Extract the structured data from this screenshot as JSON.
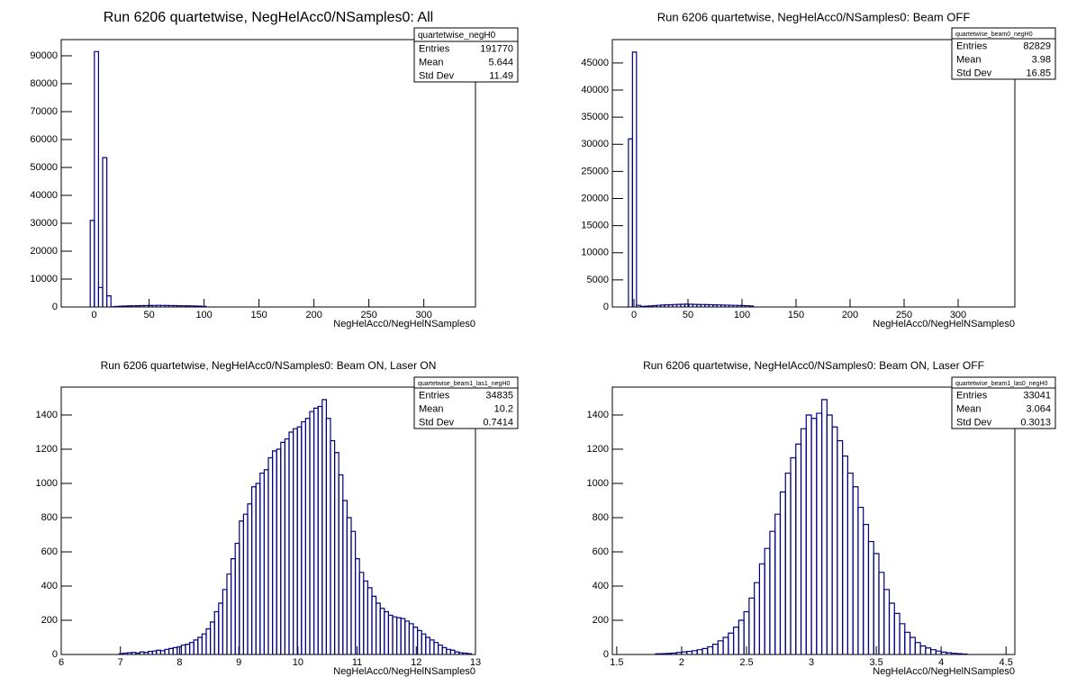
{
  "chart_data": [
    {
      "type": "histogram",
      "title": "Run 6206 quartetwise, NegHelAcc0/NSamples0: All",
      "x_label": "NegHelAcc0/NegHelNSamples0",
      "color": "#000080",
      "bins": [
        -3.61,
        0.16,
        3.93,
        7.7,
        11.47,
        15.24,
        19.01,
        22.78,
        26.55,
        30.32,
        34.09,
        37.86,
        41.63,
        45.4,
        49.17,
        52.94,
        56.71,
        60.48,
        64.25,
        68.02,
        71.79,
        75.56,
        79.33,
        83.1,
        86.87,
        90.64,
        94.41,
        98.18,
        101.95
      ],
      "values": [
        31000,
        91500,
        7000,
        53500,
        4000,
        100,
        200,
        300,
        350,
        400,
        420,
        450,
        480,
        500,
        520,
        550,
        580,
        550,
        520,
        500,
        480,
        450,
        420,
        400,
        380,
        350,
        300,
        200
      ],
      "xlim": [
        -30,
        347
      ],
      "xticks": [
        0,
        50,
        100,
        150,
        200,
        250,
        300
      ],
      "ylim": [
        0,
        95800
      ],
      "yticks": [
        0,
        10000,
        20000,
        30000,
        40000,
        50000,
        60000,
        70000,
        80000,
        90000
      ],
      "stats": {
        "title": "quartetwise_negH0",
        "rows": [
          {
            "label": "Entries",
            "value": 191770
          },
          {
            "label": "Mean",
            "value": 5.644
          },
          {
            "label": "Std Dev",
            "value": 11.49
          }
        ]
      }
    },
    {
      "type": "histogram",
      "title": "Run 6206 quartetwise, NegHelAcc0/NSamples0: Beam OFF",
      "x_label": "NegHelAcc0/NegHelNSamples0",
      "color": "#000080",
      "bins": [
        -5.1,
        -1.375,
        2.35,
        6.075,
        9.8,
        13.525,
        17.25,
        20.975,
        24.7,
        28.425,
        32.15,
        35.875,
        39.6,
        43.325,
        47.05,
        50.775,
        54.5,
        58.225,
        61.95,
        65.675,
        69.4,
        73.125,
        76.85,
        80.575,
        84.3,
        88.025,
        91.75,
        95.475,
        99.2,
        102.925,
        106.65,
        110.375
      ],
      "values": [
        31000,
        47000,
        300,
        100,
        150,
        200,
        250,
        300,
        350,
        400,
        420,
        450,
        480,
        500,
        520,
        500,
        480,
        460,
        450,
        430,
        420,
        400,
        380,
        360,
        340,
        320,
        300,
        280,
        260,
        240,
        200
      ],
      "xlim": [
        -20,
        352.5
      ],
      "xticks": [
        0,
        50,
        100,
        150,
        200,
        250,
        300
      ],
      "ylim": [
        0,
        49300
      ],
      "yticks": [
        0,
        5000,
        10000,
        15000,
        20000,
        25000,
        30000,
        35000,
        40000,
        45000
      ],
      "stats": {
        "title": "quartetwise_beam0_negH0",
        "rows": [
          {
            "label": "Entries",
            "value": 82829
          },
          {
            "label": "Mean",
            "value": 3.98
          },
          {
            "label": "Std Dev",
            "value": 16.85
          }
        ]
      }
    },
    {
      "type": "histogram",
      "title": "Run 6206 quartetwise, NegHelAcc0/NSamples0: Beam ON, Laser ON",
      "x_label": "NegHelAcc0/NegHelNSamples0",
      "color": "#000080",
      "bins": [
        6.98,
        7.05,
        7.12,
        7.19,
        7.26,
        7.33,
        7.4,
        7.47,
        7.54,
        7.61,
        7.68,
        7.75,
        7.82,
        7.89,
        7.96,
        8.03,
        8.1,
        8.17,
        8.24,
        8.31,
        8.38,
        8.45,
        8.52,
        8.59,
        8.66,
        8.73,
        8.8,
        8.87,
        8.94,
        9.01,
        9.08,
        9.15,
        9.22,
        9.29,
        9.36,
        9.43,
        9.5,
        9.57,
        9.64,
        9.71,
        9.78,
        9.85,
        9.92,
        9.99,
        10.06,
        10.13,
        10.2,
        10.27,
        10.34,
        10.41,
        10.48,
        10.55,
        10.62,
        10.69,
        10.76,
        10.83,
        10.9,
        10.97,
        11.04,
        11.11,
        11.18,
        11.25,
        11.32,
        11.39,
        11.46,
        11.53,
        11.6,
        11.67,
        11.74,
        11.81,
        11.88,
        11.95,
        12.02,
        12.09,
        12.16,
        12.23,
        12.3,
        12.37,
        12.44,
        12.51,
        12.58,
        12.65,
        12.72,
        12.79,
        12.86,
        12.93
      ],
      "values": [
        5,
        8,
        10,
        12,
        8,
        15,
        12,
        18,
        20,
        25,
        22,
        30,
        35,
        40,
        45,
        55,
        60,
        70,
        85,
        100,
        120,
        150,
        190,
        250,
        300,
        380,
        470,
        560,
        650,
        780,
        820,
        880,
        980,
        1000,
        1060,
        1080,
        1150,
        1190,
        1200,
        1240,
        1260,
        1300,
        1320,
        1330,
        1360,
        1380,
        1420,
        1440,
        1450,
        1490,
        1380,
        1250,
        1180,
        1050,
        900,
        800,
        720,
        560,
        480,
        430,
        390,
        340,
        300,
        270,
        250,
        230,
        220,
        215,
        210,
        195,
        180,
        160,
        140,
        120,
        100,
        85,
        70,
        55,
        40,
        30,
        25,
        15,
        10,
        8,
        5
      ],
      "xlim": [
        6,
        13
      ],
      "xticks": [
        6,
        7,
        8,
        9,
        10,
        11,
        12,
        13
      ],
      "ylim": [
        0,
        1563
      ],
      "yticks": [
        0,
        200,
        400,
        600,
        800,
        1000,
        1200,
        1400
      ],
      "stats": {
        "title": "quartetwise_beam1_las1_negH0",
        "rows": [
          {
            "label": "Entries",
            "value": 34835
          },
          {
            "label": "Mean",
            "value": 10.2
          },
          {
            "label": "Std Dev",
            "value": 0.7414
          }
        ]
      }
    },
    {
      "type": "histogram",
      "title": "Run 6206 quartetwise, NegHelAcc0/NSamples0: Beam ON, Laser OFF",
      "x_label": "NegHelAcc0/NegHelNSamples0",
      "color": "#000080",
      "bins": [
        1.8,
        1.84,
        1.88,
        1.92,
        1.96,
        2.0,
        2.04,
        2.08,
        2.12,
        2.16,
        2.2,
        2.24,
        2.28,
        2.32,
        2.36,
        2.4,
        2.44,
        2.48,
        2.52,
        2.56,
        2.6,
        2.64,
        2.68,
        2.72,
        2.76,
        2.8,
        2.84,
        2.88,
        2.92,
        2.96,
        3.0,
        3.04,
        3.08,
        3.12,
        3.16,
        3.2,
        3.24,
        3.28,
        3.32,
        3.36,
        3.4,
        3.44,
        3.48,
        3.52,
        3.56,
        3.6,
        3.64,
        3.68,
        3.72,
        3.76,
        3.8,
        3.84,
        3.88,
        3.92,
        3.96,
        4.0,
        4.04,
        4.08,
        4.12,
        4.16,
        4.2
      ],
      "values": [
        4,
        5,
        6,
        8,
        12,
        15,
        18,
        22,
        28,
        35,
        45,
        60,
        80,
        100,
        125,
        160,
        200,
        250,
        330,
        420,
        530,
        620,
        720,
        820,
        950,
        1060,
        1150,
        1230,
        1320,
        1400,
        1380,
        1410,
        1490,
        1400,
        1330,
        1250,
        1160,
        1060,
        980,
        860,
        760,
        660,
        590,
        480,
        380,
        300,
        240,
        180,
        130,
        100,
        70,
        50,
        38,
        28,
        20,
        14,
        10,
        7,
        5,
        3
      ],
      "xlim": [
        1.466,
        4.568
      ],
      "xticks": [
        1.5,
        2,
        2.5,
        3,
        3.5,
        4,
        4.5
      ],
      "ylim": [
        0,
        1563
      ],
      "yticks": [
        0,
        200,
        400,
        600,
        800,
        1000,
        1200,
        1400
      ],
      "stats": {
        "title": "quartetwise_beam1_las0_negH0",
        "rows": [
          {
            "label": "Entries",
            "value": 33041
          },
          {
            "label": "Mean",
            "value": 3.064
          },
          {
            "label": "Std Dev",
            "value": 0.3013
          }
        ]
      }
    }
  ]
}
